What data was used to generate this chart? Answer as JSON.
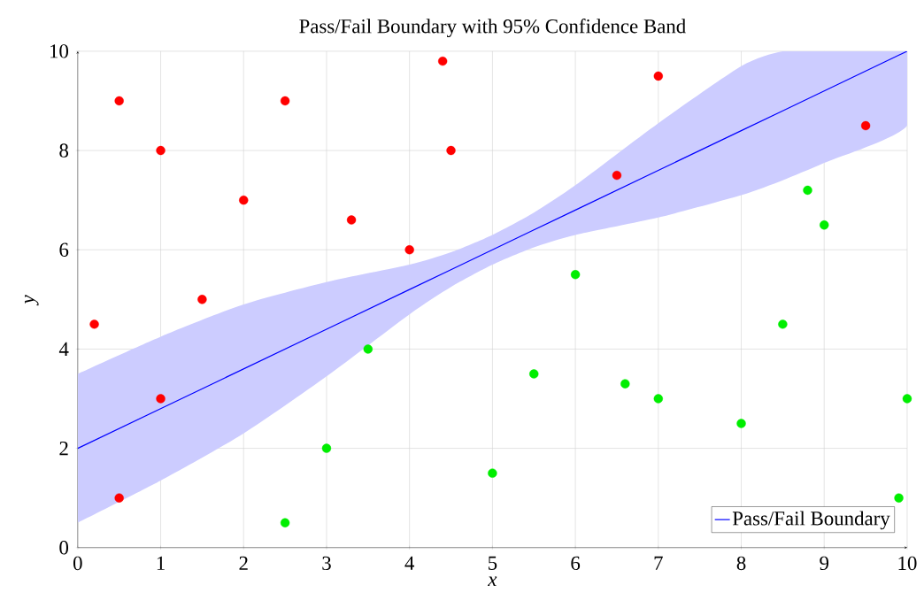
{
  "chart_data": {
    "type": "scatter",
    "title": "Pass/Fail Boundary with 95% Confidence Band",
    "xlabel": "x",
    "ylabel": "y",
    "xlim": [
      0,
      10
    ],
    "ylim": [
      0,
      10
    ],
    "xticks": [
      0,
      1,
      2,
      3,
      4,
      5,
      6,
      7,
      8,
      9,
      10
    ],
    "yticks": [
      0,
      2,
      4,
      6,
      8,
      10
    ],
    "grid": true,
    "legend": "bottom right",
    "marker": "circle",
    "series": [
      {
        "name": "Pass/Fail Boundary",
        "type": "line",
        "color": "#0000ff",
        "marker": "none",
        "line_style": "solid",
        "x": [
          0,
          1,
          2,
          3,
          4,
          4.5,
          5,
          5.5,
          6,
          7,
          8,
          8.5,
          9,
          10
        ],
        "values": [
          2,
          2.8,
          3.6,
          4.4,
          5.2,
          5.6,
          6,
          6.4,
          6.8,
          7.6,
          8.4,
          8.8,
          9.2,
          10
        ],
        "lower": [
          0.5,
          1.35,
          2.3,
          3.45,
          4.7,
          5.25,
          5.7,
          6.05,
          6.3,
          6.65,
          7.1,
          7.4,
          7.75,
          8.5
        ],
        "upper": [
          3.5,
          4.25,
          4.9,
          5.35,
          5.7,
          5.95,
          6.3,
          6.75,
          7.3,
          8.55,
          9.7,
          10,
          10,
          10
        ]
      },
      {
        "color": "#ff0000",
        "x": [
          0.2,
          0.5,
          1,
          0.5,
          1,
          1.5,
          2,
          2.5,
          3.3,
          4,
          4.4,
          4.5,
          6.5,
          7,
          9.5
        ],
        "values": [
          4.5,
          9,
          8,
          1,
          3,
          5,
          7,
          9,
          6.6,
          6,
          9.8,
          8,
          7.5,
          9.5,
          8.5
        ]
      },
      {
        "color": "#00ee00",
        "x": [
          2.5,
          3,
          3.5,
          5,
          5.5,
          6,
          6.6,
          7,
          8,
          8.5,
          8.8,
          9,
          9.9,
          10
        ],
        "values": [
          0.5,
          2,
          4,
          1.5,
          3.5,
          5.5,
          3.3,
          3,
          2.5,
          4.5,
          7.2,
          6.5,
          1,
          3
        ]
      }
    ]
  }
}
